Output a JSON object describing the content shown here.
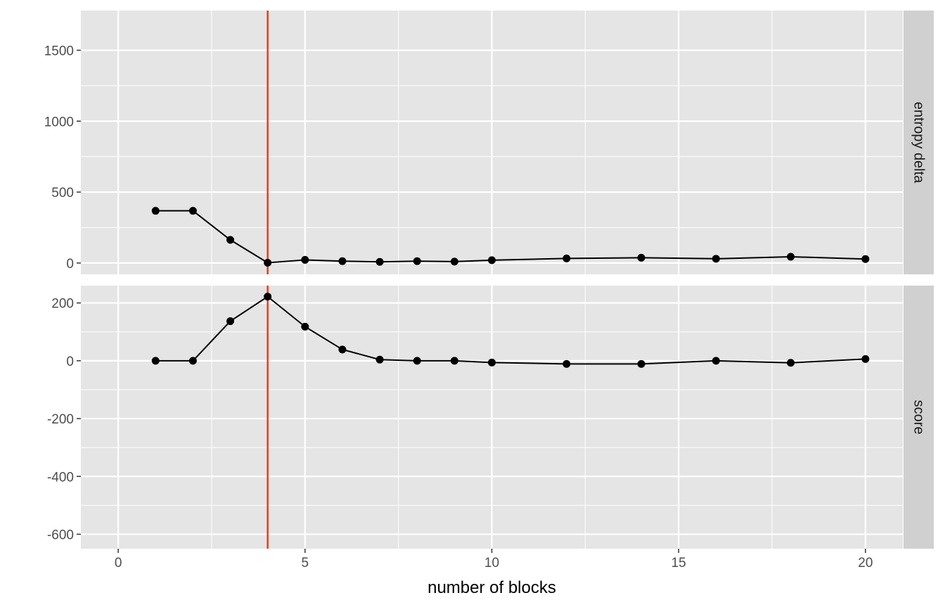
{
  "chart_data": {
    "type": "line",
    "xlabel": "number of blocks",
    "x_ticks": [
      0,
      5,
      10,
      15,
      20
    ],
    "xlim": [
      -1,
      21
    ],
    "vline": {
      "x": 4,
      "color": "#ee3b1a"
    },
    "colors": {
      "panel_bg": "#e5e5e5",
      "grid": "#ffffff",
      "strip_bg": "#d0d0d0",
      "series": "#000000"
    },
    "x": [
      1,
      2,
      3,
      4,
      5,
      6,
      7,
      8,
      9,
      10,
      12,
      14,
      16,
      18,
      20
    ],
    "panels": [
      {
        "strip": "entropy delta",
        "ylim": [
          -80,
          1780
        ],
        "y_ticks": [
          0,
          500,
          1000,
          1500
        ],
        "y_tick_labels": [
          "0",
          "500",
          "1000",
          "1500"
        ],
        "values": [
          368,
          368,
          163,
          2,
          22,
          13,
          8,
          13,
          10,
          20,
          32,
          37,
          30,
          44,
          28
        ]
      },
      {
        "strip": "score",
        "ylim": [
          -650,
          260
        ],
        "y_ticks": [
          -600,
          -400,
          -200,
          0,
          200
        ],
        "y_tick_labels": [
          "-600",
          "-400",
          "-200",
          "0",
          "200"
        ],
        "values": [
          0,
          0,
          137,
          222,
          118,
          39,
          4,
          0,
          0,
          -6,
          -11,
          -11,
          0,
          -7,
          6
        ]
      }
    ]
  }
}
